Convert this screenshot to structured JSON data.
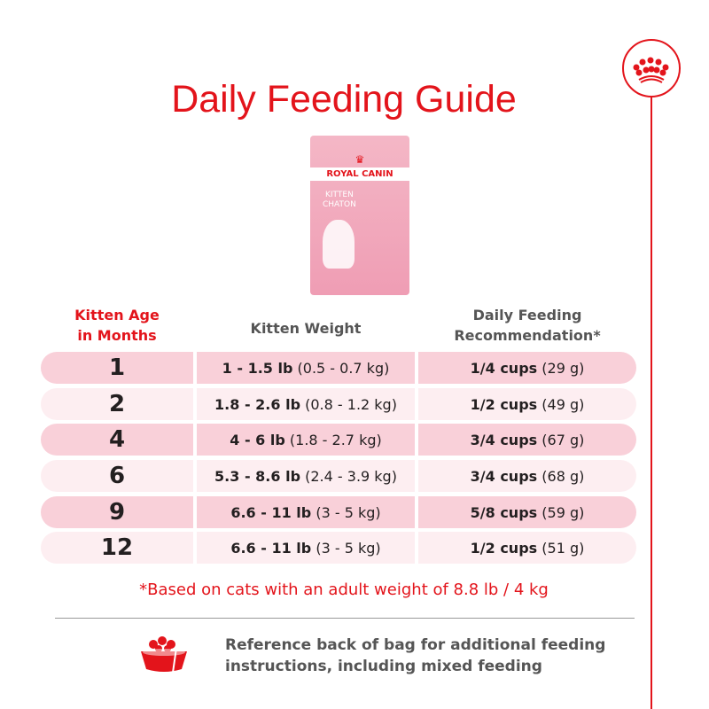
{
  "title": "Daily Feeding Guide",
  "product": {
    "brand": "ROYAL CANIN",
    "name_line1": "KITTEN",
    "name_line2": "CHATON"
  },
  "headers": {
    "age_line1": "Kitten Age",
    "age_line2": "in Months",
    "weight": "Kitten Weight",
    "rec_line1": "Daily Feeding",
    "rec_line2": "Recommendation*"
  },
  "rows": [
    {
      "age": "1",
      "weight_lb": "1 - 1.5 lb",
      "weight_kg": "(0.5 - 0.7 kg)",
      "cups": "1/4 cups",
      "grams": "(29 g)"
    },
    {
      "age": "2",
      "weight_lb": "1.8 - 2.6 lb",
      "weight_kg": "(0.8 - 1.2 kg)",
      "cups": "1/2 cups",
      "grams": "(49 g)"
    },
    {
      "age": "4",
      "weight_lb": "4 - 6 lb",
      "weight_kg": "(1.8 - 2.7 kg)",
      "cups": "3/4 cups",
      "grams": "(67 g)"
    },
    {
      "age": "6",
      "weight_lb": "5.3 - 8.6 lb",
      "weight_kg": "(2.4 - 3.9 kg)",
      "cups": "3/4 cups",
      "grams": "(68 g)"
    },
    {
      "age": "9",
      "weight_lb": "6.6 - 11 lb",
      "weight_kg": "(3 - 5 kg)",
      "cups": "5/8 cups",
      "grams": "(59 g)"
    },
    {
      "age": "12",
      "weight_lb": "6.6 - 11 lb",
      "weight_kg": "(3 - 5 kg)",
      "cups": "1/2 cups",
      "grams": "(51 g)"
    }
  ],
  "footnote": "*Based on cats with an adult weight of 8.8 lb / 4 kg",
  "footer": {
    "line1": "Reference back of bag for additional feeding",
    "line2": "instructions, including mixed feeding"
  },
  "colors": {
    "red": "#e3141b",
    "row_dark": "#f9d0d9",
    "row_light": "#fdeef1"
  }
}
